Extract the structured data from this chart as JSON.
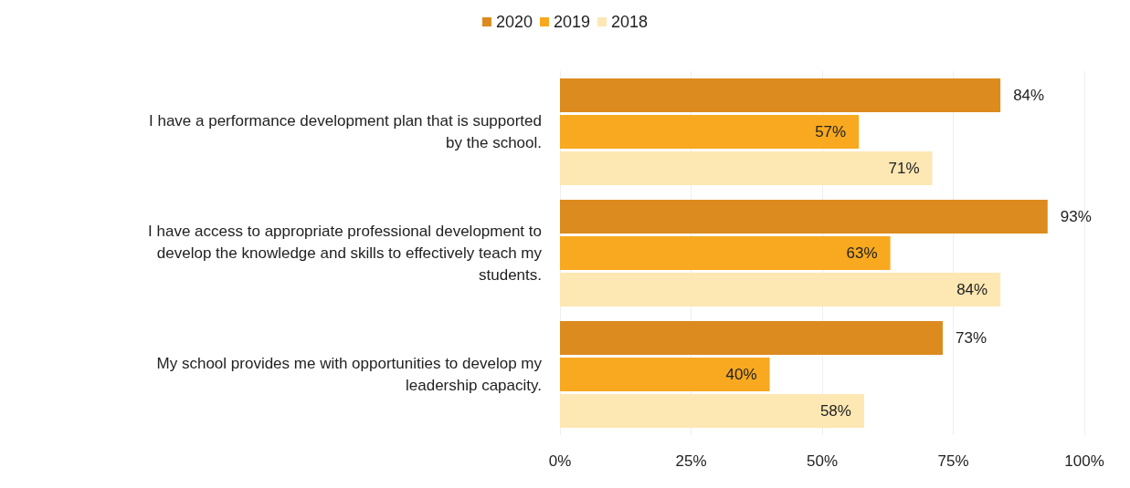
{
  "chart_data": {
    "type": "bar",
    "orientation": "horizontal",
    "categories": [
      "I have a performance development plan that is supported by the school.",
      "I have access to appropriate professional development to develop the knowledge and skills to effectively teach my students.",
      "My school provides me with opportunities to develop my leadership capacity."
    ],
    "series": [
      {
        "name": "2020",
        "color": "#dc8b1e",
        "values": [
          84,
          93,
          73
        ],
        "value_labels": [
          "84%",
          "93%",
          "73%"
        ]
      },
      {
        "name": "2019",
        "color": "#f8a91f",
        "values": [
          57,
          63,
          40
        ],
        "value_labels": [
          "57%",
          "63%",
          "40%"
        ]
      },
      {
        "name": "2018",
        "color": "#fde7b3",
        "values": [
          71,
          84,
          58
        ],
        "value_labels": [
          "71%",
          "84%",
          "58%"
        ]
      }
    ],
    "xlim": [
      0,
      100
    ],
    "xticks": [
      {
        "value": 0,
        "label": "0%"
      },
      {
        "value": 25,
        "label": "25%"
      },
      {
        "value": 50,
        "label": "50%"
      },
      {
        "value": 75,
        "label": "75%"
      },
      {
        "value": 100,
        "label": "100%"
      }
    ],
    "grid": "x",
    "legend": "top"
  }
}
